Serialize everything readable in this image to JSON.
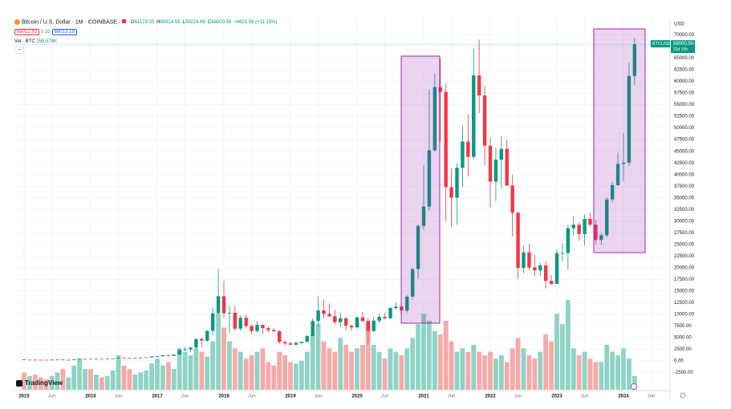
{
  "header": {
    "title": "Bitcoin / U.S. Dollar · 1M · COINBASE",
    "ohlc": [
      "O",
      "61179.03",
      "H",
      "69324.58",
      "L",
      "59224.68",
      "C",
      "68000.58",
      "+6821.56 (+11.15%)"
    ],
    "bid": "68012.83",
    "spread": "0.35",
    "ask": "68013.18",
    "vol_label": "Vol · BTC",
    "vol_value": "259.576K",
    "currency": "USD",
    "logo": "TradingView"
  },
  "chart_data": {
    "type": "candlestick",
    "symbol": "BTCUSD",
    "last_price": {
      "value": 68000.58,
      "label": "68000.58"
    },
    "countdown": "22d 10h",
    "up_color": "#089981",
    "down_color": "#f23645",
    "vol_up_color": "#8fd3c5",
    "vol_down_color": "#f7a9a9",
    "grid": true,
    "x": [
      "2015-01",
      "2015-02",
      "2015-03",
      "2015-04",
      "2015-05",
      "2015-06",
      "2015-07",
      "2015-08",
      "2015-09",
      "2015-10",
      "2015-11",
      "2015-12",
      "2016-01",
      "2016-02",
      "2016-03",
      "2016-04",
      "2016-05",
      "2016-06",
      "2016-07",
      "2016-08",
      "2016-09",
      "2016-10",
      "2016-11",
      "2016-12",
      "2017-01",
      "2017-02",
      "2017-03",
      "2017-04",
      "2017-05",
      "2017-06",
      "2017-07",
      "2017-08",
      "2017-09",
      "2017-10",
      "2017-11",
      "2017-12",
      "2018-01",
      "2018-02",
      "2018-03",
      "2018-04",
      "2018-05",
      "2018-06",
      "2018-07",
      "2018-08",
      "2018-09",
      "2018-10",
      "2018-11",
      "2018-12",
      "2019-01",
      "2019-02",
      "2019-03",
      "2019-04",
      "2019-05",
      "2019-06",
      "2019-07",
      "2019-08",
      "2019-09",
      "2019-10",
      "2019-11",
      "2019-12",
      "2020-01",
      "2020-02",
      "2020-03",
      "2020-04",
      "2020-05",
      "2020-06",
      "2020-07",
      "2020-08",
      "2020-09",
      "2020-10",
      "2020-11",
      "2020-12",
      "2021-01",
      "2021-02",
      "2021-03",
      "2021-04",
      "2021-05",
      "2021-06",
      "2021-07",
      "2021-08",
      "2021-09",
      "2021-10",
      "2021-11",
      "2021-12",
      "2022-01",
      "2022-02",
      "2022-03",
      "2022-04",
      "2022-05",
      "2022-06",
      "2022-07",
      "2022-08",
      "2022-09",
      "2022-10",
      "2022-11",
      "2022-12",
      "2023-01",
      "2023-02",
      "2023-03",
      "2023-04",
      "2023-05",
      "2023-06",
      "2023-07",
      "2023-08",
      "2023-09",
      "2023-10",
      "2023-11",
      "2023-12",
      "2024-01",
      "2024-02",
      "2024-03"
    ],
    "open": [
      320,
      217,
      254,
      244,
      236,
      230,
      263,
      284,
      230,
      236,
      314,
      377,
      430,
      368,
      437,
      416,
      448,
      531,
      673,
      624,
      573,
      609,
      698,
      742,
      963,
      970,
      1190,
      1080,
      1350,
      2300,
      2480,
      2870,
      4700,
      4340,
      6470,
      10200,
      13860,
      10220,
      10330,
      6920,
      9240,
      7490,
      6390,
      7730,
      7030,
      6630,
      6370,
      4040,
      3740,
      3460,
      3850,
      4100,
      5320,
      8560,
      10820,
      10080,
      9600,
      8300,
      9150,
      7540,
      7190,
      9350,
      8530,
      6410,
      8630,
      9450,
      9140,
      11350,
      11650,
      10780,
      13800,
      19700,
      28990,
      33140,
      45240,
      58800,
      57750,
      37300,
      35040,
      41460,
      47100,
      43820,
      61300,
      57000,
      46200,
      38480,
      43190,
      45540,
      37640,
      31800,
      19980,
      23300,
      20050,
      19420,
      20490,
      17170,
      16540,
      23140,
      23150,
      28470,
      29250,
      27220,
      30470,
      29230,
      25940,
      26970,
      34650,
      37720,
      42280,
      42580,
      61180
    ],
    "high": [
      320,
      265,
      300,
      260,
      248,
      268,
      315,
      285,
      245,
      335,
      500,
      465,
      460,
      445,
      440,
      470,
      550,
      780,
      700,
      620,
      630,
      720,
      750,
      980,
      1150,
      1200,
      1350,
      1360,
      2760,
      3000,
      2930,
      4750,
      5000,
      6470,
      11500,
      19800,
      17200,
      11800,
      11700,
      9800,
      10000,
      7800,
      8500,
      7760,
      7400,
      7000,
      6600,
      4300,
      4100,
      4200,
      4150,
      5600,
      9100,
      13800,
      13150,
      12300,
      10950,
      10350,
      9500,
      7750,
      9580,
      10500,
      9200,
      9460,
      10080,
      10400,
      11450,
      12480,
      12100,
      14100,
      19900,
      29300,
      41950,
      58350,
      61790,
      64900,
      59600,
      41300,
      42400,
      50500,
      52950,
      67000,
      69000,
      59100,
      47990,
      45800,
      48200,
      47450,
      40000,
      31990,
      24670,
      25200,
      22800,
      21100,
      21450,
      18400,
      23960,
      25250,
      29200,
      31000,
      29820,
      31430,
      31800,
      30250,
      27490,
      35200,
      38420,
      44700,
      48970,
      63950,
      69320
    ],
    "low": [
      170,
      212,
      235,
      215,
      225,
      220,
      255,
      200,
      225,
      235,
      310,
      350,
      350,
      365,
      400,
      415,
      440,
      520,
      600,
      480,
      570,
      600,
      680,
      740,
      750,
      920,
      890,
      1060,
      1340,
      2100,
      1830,
      2700,
      2970,
      4110,
      5500,
      10200,
      9200,
      6000,
      6500,
      6430,
      7000,
      5750,
      6090,
      5880,
      6100,
      6200,
      3650,
      3150,
      3400,
      3400,
      3700,
      4050,
      5300,
      7450,
      9100,
      9300,
      7750,
      7300,
      6520,
      6430,
      6850,
      8450,
      3850,
      6150,
      8100,
      8900,
      8950,
      10950,
      9900,
      10380,
      13200,
      17600,
      28130,
      32300,
      44950,
      47000,
      30000,
      28800,
      29300,
      37350,
      39600,
      43300,
      53250,
      42000,
      32900,
      34300,
      37200,
      37700,
      26700,
      17600,
      18800,
      19600,
      18200,
      18150,
      15500,
      16260,
      16500,
      21400,
      19570,
      26900,
      25800,
      24800,
      28860,
      25100,
      24900,
      26540,
      34100,
      37600,
      38500,
      41880,
      59220
    ],
    "close": [
      217,
      254,
      244,
      236,
      230,
      263,
      284,
      230,
      236,
      314,
      377,
      430,
      368,
      437,
      416,
      448,
      531,
      673,
      624,
      573,
      609,
      698,
      742,
      963,
      970,
      1190,
      1080,
      1350,
      2300,
      2480,
      2870,
      4700,
      4340,
      6470,
      10200,
      13860,
      10220,
      10330,
      6920,
      9240,
      7490,
      6390,
      7730,
      7030,
      6630,
      6370,
      4040,
      3740,
      3460,
      3850,
      4100,
      5320,
      8560,
      10820,
      10080,
      9600,
      8300,
      9150,
      7540,
      7190,
      9350,
      8530,
      6410,
      8630,
      9450,
      9140,
      11350,
      11650,
      10780,
      13800,
      19700,
      28990,
      33140,
      45240,
      58800,
      57750,
      37300,
      35040,
      41460,
      47100,
      43820,
      61300,
      57000,
      46200,
      38480,
      43190,
      45540,
      37640,
      31800,
      19980,
      23300,
      20050,
      19420,
      20490,
      17170,
      16540,
      23140,
      23150,
      28470,
      29250,
      27220,
      30470,
      29230,
      25940,
      26970,
      34650,
      37720,
      42280,
      42580,
      61180,
      68000
    ],
    "volume": [
      25,
      20,
      22,
      18,
      15,
      20,
      25,
      30,
      18,
      35,
      45,
      30,
      30,
      22,
      18,
      20,
      28,
      50,
      35,
      30,
      22,
      25,
      28,
      38,
      45,
      35,
      40,
      30,
      60,
      55,
      50,
      60,
      55,
      48,
      70,
      110,
      90,
      70,
      60,
      55,
      45,
      50,
      55,
      60,
      40,
      35,
      55,
      50,
      40,
      38,
      42,
      55,
      80,
      95,
      70,
      60,
      55,
      75,
      65,
      55,
      60,
      65,
      100,
      65,
      55,
      45,
      60,
      55,
      50,
      60,
      75,
      95,
      110,
      100,
      85,
      80,
      100,
      70,
      55,
      60,
      55,
      65,
      55,
      50,
      55,
      45,
      50,
      40,
      60,
      75,
      60,
      50,
      45,
      55,
      80,
      70,
      110,
      95,
      130,
      60,
      50,
      55,
      45,
      40,
      40,
      65,
      55,
      50,
      60,
      45,
      20
    ],
    "ylim": [
      -5000,
      72500
    ],
    "yticks": [
      {
        "value": -2500,
        "label": "-2500.00"
      },
      {
        "value": 0,
        "label": "0.00"
      },
      {
        "value": 2500,
        "label": "2500.00"
      },
      {
        "value": 5000,
        "label": "5000.00"
      },
      {
        "value": 7500,
        "label": "7500.00"
      },
      {
        "value": 10000,
        "label": "10000.00"
      },
      {
        "value": 12500,
        "label": "12500.00"
      },
      {
        "value": 15000,
        "label": "15000.00"
      },
      {
        "value": 17500,
        "label": "17500.00"
      },
      {
        "value": 20000,
        "label": "20000.00"
      },
      {
        "value": 22500,
        "label": "22500.00"
      },
      {
        "value": 25000,
        "label": "25000.00"
      },
      {
        "value": 27500,
        "label": "27500.00"
      },
      {
        "value": 30000,
        "label": "30000.00"
      },
      {
        "value": 32500,
        "label": "32500.00"
      },
      {
        "value": 35000,
        "label": "35000.00"
      },
      {
        "value": 37500,
        "label": "37500.00"
      },
      {
        "value": 40000,
        "label": "40000.00"
      },
      {
        "value": 42500,
        "label": "42500.00"
      },
      {
        "value": 45000,
        "label": "45000.00"
      },
      {
        "value": 47500,
        "label": "47500.00"
      },
      {
        "value": 50000,
        "label": "50000.00"
      },
      {
        "value": 52500,
        "label": "52500.00"
      },
      {
        "value": 55000,
        "label": "55000.00"
      },
      {
        "value": 57500,
        "label": "57500.00"
      },
      {
        "value": 60000,
        "label": "60000.00"
      },
      {
        "value": 62500,
        "label": "62500.00"
      },
      {
        "value": 65000,
        "label": "65000.00"
      },
      {
        "value": 67500,
        "label": "67500.00"
      },
      {
        "value": 70000,
        "label": "70000.00"
      }
    ],
    "xticks": [
      {
        "value": "2015-01",
        "label": "2015"
      },
      {
        "value": "2015-06",
        "label": "Jun"
      },
      {
        "value": "2016-01",
        "label": "2016"
      },
      {
        "value": "2016-06",
        "label": "Jun"
      },
      {
        "value": "2017-01",
        "label": "2017"
      },
      {
        "value": "2017-06",
        "label": "Jun"
      },
      {
        "value": "2018-01",
        "label": "2018"
      },
      {
        "value": "2018-06",
        "label": "Jun"
      },
      {
        "value": "2019-01",
        "label": "2019"
      },
      {
        "value": "2019-06",
        "label": "Jun"
      },
      {
        "value": "2020-01",
        "label": "2020"
      },
      {
        "value": "2020-06",
        "label": "Jun"
      },
      {
        "value": "2021-01",
        "label": "2021"
      },
      {
        "value": "2021-06",
        "label": "Jun"
      },
      {
        "value": "2022-01",
        "label": "2022"
      },
      {
        "value": "2022-06",
        "label": "Jun"
      },
      {
        "value": "2023-01",
        "label": "2023"
      },
      {
        "value": "2023-06",
        "label": "Jun"
      },
      {
        "value": "2024-01",
        "label": "2024"
      },
      {
        "value": "2024-06",
        "label": "Jun"
      }
    ]
  }
}
